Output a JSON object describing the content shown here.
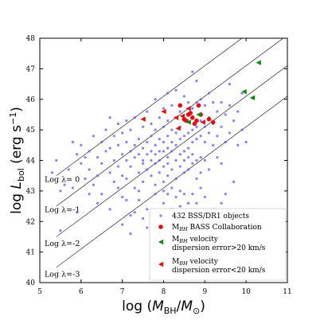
{
  "chart_data": {
    "type": "scatter",
    "xlabel": "log (M_BH/M_⊙)",
    "ylabel": "log L_bol (erg s⁻¹)",
    "xlim": [
      5,
      11
    ],
    "ylim": [
      40,
      48
    ],
    "x_ticks": [
      "5",
      "6",
      "7",
      "8",
      "9",
      "10",
      "11"
    ],
    "y_ticks": [
      "40",
      "41",
      "42",
      "43",
      "44",
      "45",
      "46",
      "47",
      "48"
    ],
    "grid": false,
    "legend_position": "bottom-right",
    "eddington_lines": [
      {
        "label": "Log λ= 0",
        "log_lambda": 0
      },
      {
        "label": "Log λ=-1",
        "log_lambda": -1
      },
      {
        "label": "Log λ=-2",
        "log_lambda": -2
      },
      {
        "label": "Log λ=-3",
        "log_lambda": -3
      }
    ],
    "series": [
      {
        "name": "432 BSS/DR1 objects",
        "color": "#5a5af0",
        "marker": "dot",
        "points": [
          [
            5.3,
            43.6
          ],
          [
            5.4,
            44.0
          ],
          [
            5.5,
            41.7
          ],
          [
            5.5,
            43.0
          ],
          [
            5.6,
            43.2
          ],
          [
            5.7,
            43.7
          ],
          [
            5.8,
            44.6
          ],
          [
            5.8,
            43.1
          ],
          [
            5.9,
            44.2
          ],
          [
            6.0,
            43.9
          ],
          [
            6.0,
            44.5
          ],
          [
            6.1,
            43.4
          ],
          [
            6.1,
            44.1
          ],
          [
            6.2,
            44.3
          ],
          [
            6.2,
            43.7
          ],
          [
            6.3,
            44.8
          ],
          [
            6.3,
            43.2
          ],
          [
            6.4,
            44.1
          ],
          [
            6.4,
            43.5
          ],
          [
            6.5,
            44.6
          ],
          [
            6.5,
            43.9
          ],
          [
            6.5,
            42.9
          ],
          [
            6.6,
            44.3
          ],
          [
            6.6,
            45.0
          ],
          [
            6.7,
            43.6
          ],
          [
            6.7,
            44.4
          ],
          [
            6.7,
            42.4
          ],
          [
            6.8,
            44.0
          ],
          [
            6.8,
            44.8
          ],
          [
            6.8,
            43.3
          ],
          [
            6.9,
            44.5
          ],
          [
            6.9,
            43.8
          ],
          [
            6.9,
            45.2
          ],
          [
            7.0,
            44.2
          ],
          [
            7.0,
            43.5
          ],
          [
            7.0,
            44.9
          ],
          [
            7.0,
            42.8
          ],
          [
            7.1,
            44.0
          ],
          [
            7.1,
            44.6
          ],
          [
            7.1,
            45.3
          ],
          [
            7.1,
            43.4
          ],
          [
            7.2,
            44.3
          ],
          [
            7.2,
            43.8
          ],
          [
            7.2,
            45.0
          ],
          [
            7.2,
            42.2
          ],
          [
            7.3,
            44.5
          ],
          [
            7.3,
            43.1
          ],
          [
            7.3,
            44.1
          ],
          [
            7.3,
            45.4
          ],
          [
            7.4,
            44.7
          ],
          [
            7.4,
            43.6
          ],
          [
            7.4,
            44.2
          ],
          [
            7.4,
            42.7
          ],
          [
            7.5,
            44.4
          ],
          [
            7.5,
            43.9
          ],
          [
            7.5,
            45.1
          ],
          [
            7.5,
            44.0
          ],
          [
            7.5,
            43.3
          ],
          [
            7.6,
            44.6
          ],
          [
            7.6,
            44.2
          ],
          [
            7.6,
            45.6
          ],
          [
            7.6,
            43.7
          ],
          [
            7.6,
            42.4
          ],
          [
            7.7,
            44.8
          ],
          [
            7.7,
            44.3
          ],
          [
            7.7,
            43.5
          ],
          [
            7.7,
            45.2
          ],
          [
            7.7,
            44.0
          ],
          [
            7.8,
            44.5
          ],
          [
            7.8,
            43.9
          ],
          [
            7.8,
            45.0
          ],
          [
            7.8,
            43.2
          ],
          [
            7.8,
            44.2
          ],
          [
            7.8,
            42.9
          ],
          [
            7.9,
            44.7
          ],
          [
            7.9,
            44.3
          ],
          [
            7.9,
            45.4
          ],
          [
            7.9,
            43.6
          ],
          [
            7.9,
            44.0
          ],
          [
            7.9,
            42.3
          ],
          [
            8.0,
            44.6
          ],
          [
            8.0,
            45.1
          ],
          [
            8.0,
            43.8
          ],
          [
            8.0,
            44.3
          ],
          [
            8.0,
            43.3
          ],
          [
            8.0,
            45.7
          ],
          [
            8.0,
            42.6
          ],
          [
            8.1,
            44.8
          ],
          [
            8.1,
            44.4
          ],
          [
            8.1,
            43.9
          ],
          [
            8.1,
            45.3
          ],
          [
            8.1,
            43.5
          ],
          [
            8.1,
            44.1
          ],
          [
            8.1,
            42.9
          ],
          [
            8.2,
            44.6
          ],
          [
            8.2,
            45.0
          ],
          [
            8.2,
            43.7
          ],
          [
            8.2,
            44.3
          ],
          [
            8.2,
            45.8
          ],
          [
            8.2,
            43.1
          ],
          [
            8.2,
            42.4
          ],
          [
            8.3,
            44.9
          ],
          [
            8.3,
            44.5
          ],
          [
            8.3,
            44.0
          ],
          [
            8.3,
            45.4
          ],
          [
            8.3,
            43.4
          ],
          [
            8.3,
            46.3
          ],
          [
            8.3,
            42.8
          ],
          [
            8.4,
            44.7
          ],
          [
            8.4,
            45.1
          ],
          [
            8.4,
            43.8
          ],
          [
            8.4,
            44.2
          ],
          [
            8.4,
            45.6
          ],
          [
            8.4,
            43.0
          ],
          [
            8.4,
            42.5
          ],
          [
            8.5,
            44.8
          ],
          [
            8.5,
            45.3
          ],
          [
            8.5,
            44.3
          ],
          [
            8.5,
            43.6
          ],
          [
            8.5,
            46.1
          ],
          [
            8.5,
            42.9
          ],
          [
            8.5,
            44.0
          ],
          [
            8.6,
            44.9
          ],
          [
            8.6,
            45.5
          ],
          [
            8.6,
            44.4
          ],
          [
            8.6,
            43.7
          ],
          [
            8.6,
            45.9
          ],
          [
            8.6,
            42.6
          ],
          [
            8.6,
            44.1
          ],
          [
            8.7,
            45.0
          ],
          [
            8.7,
            44.6
          ],
          [
            8.7,
            45.7
          ],
          [
            8.7,
            43.9
          ],
          [
            8.7,
            44.2
          ],
          [
            8.7,
            42.9
          ],
          [
            8.8,
            45.1
          ],
          [
            8.8,
            44.7
          ],
          [
            8.8,
            45.9
          ],
          [
            8.8,
            44.0
          ],
          [
            8.8,
            43.4
          ],
          [
            8.8,
            46.6
          ],
          [
            8.9,
            45.3
          ],
          [
            8.9,
            44.8
          ],
          [
            8.9,
            46.0
          ],
          [
            8.9,
            44.1
          ],
          [
            8.9,
            43.6
          ],
          [
            9.0,
            45.1
          ],
          [
            9.0,
            44.6
          ],
          [
            9.0,
            45.8
          ],
          [
            9.0,
            44.0
          ],
          [
            9.0,
            42.8
          ],
          [
            9.1,
            45.4
          ],
          [
            9.1,
            44.9
          ],
          [
            9.1,
            46.2
          ],
          [
            9.1,
            43.7
          ],
          [
            9.2,
            45.2
          ],
          [
            9.2,
            44.5
          ],
          [
            9.2,
            45.9
          ],
          [
            9.3,
            45.6
          ],
          [
            9.3,
            44.8
          ],
          [
            9.3,
            44.1
          ],
          [
            9.4,
            45.9
          ],
          [
            9.4,
            45.1
          ],
          [
            9.4,
            43.9
          ],
          [
            9.5,
            45.5
          ],
          [
            9.5,
            44.6
          ],
          [
            9.6,
            45.8
          ],
          [
            9.6,
            44.9
          ],
          [
            9.7,
            45.3
          ],
          [
            9.7,
            43.3
          ],
          [
            9.8,
            45.6
          ],
          [
            9.8,
            44.5
          ],
          [
            9.9,
            45.0
          ],
          [
            9.9,
            46.2
          ],
          [
            10.0,
            44.6
          ],
          [
            6.4,
            42.6
          ],
          [
            6.7,
            45.4
          ],
          [
            7.0,
            41.9
          ],
          [
            7.3,
            42.3
          ],
          [
            7.6,
            41.8
          ],
          [
            7.9,
            41.6
          ],
          [
            8.2,
            41.9
          ],
          [
            8.4,
            41.4
          ],
          [
            8.6,
            41.6
          ],
          [
            8.9,
            42.1
          ],
          [
            9.2,
            42.4
          ],
          [
            9.5,
            42.9
          ],
          [
            6.2,
            42.9
          ],
          [
            5.9,
            42.3
          ],
          [
            7.8,
            46.0
          ],
          [
            8.1,
            46.2
          ],
          [
            8.7,
            46.9
          ],
          [
            9.6,
            46.5
          ],
          [
            8.0,
            43.0
          ],
          [
            7.4,
            43.0
          ],
          [
            8.8,
            42.6
          ],
          [
            9.4,
            42.6
          ],
          [
            7.2,
            41.6
          ],
          [
            8.5,
            41.2
          ],
          [
            9.0,
            41.2
          ],
          [
            6.9,
            43.1
          ],
          [
            7.1,
            42.7
          ],
          [
            7.5,
            42.1
          ],
          [
            8.3,
            42.1
          ],
          [
            8.9,
            43.1
          ]
        ]
      },
      {
        "name": "M_BH BASS Collaboration",
        "color": "#e01010",
        "marker": "circle",
        "points": [
          [
            8.4,
            45.8
          ],
          [
            8.5,
            45.35
          ],
          [
            8.55,
            45.3
          ],
          [
            8.6,
            45.5
          ],
          [
            8.7,
            45.4
          ],
          [
            8.8,
            45.3
          ],
          [
            8.85,
            45.8
          ],
          [
            8.9,
            45.5
          ],
          [
            9.1,
            45.35
          ],
          [
            9.2,
            45.25
          ],
          [
            8.65,
            45.55
          ],
          [
            8.75,
            45.2
          ]
        ]
      },
      {
        "name": "M_BH velocity dispersion error>20 km/s",
        "color": "#118a11",
        "marker": "triangle-left",
        "points": [
          [
            10.3,
            47.2
          ],
          [
            9.95,
            46.25
          ],
          [
            10.15,
            46.05
          ],
          [
            8.85,
            45.5
          ],
          [
            8.6,
            45.25
          ]
        ]
      },
      {
        "name": "M_BH velocity dispersion error<20 km/s",
        "color": "#e01010",
        "marker": "triangle-left",
        "points": [
          [
            7.5,
            45.35
          ],
          [
            8.0,
            45.6
          ],
          [
            8.3,
            45.4
          ],
          [
            8.35,
            45.05
          ],
          [
            8.45,
            45.45
          ],
          [
            8.6,
            45.7
          ],
          [
            8.95,
            45.25
          ]
        ]
      }
    ]
  }
}
